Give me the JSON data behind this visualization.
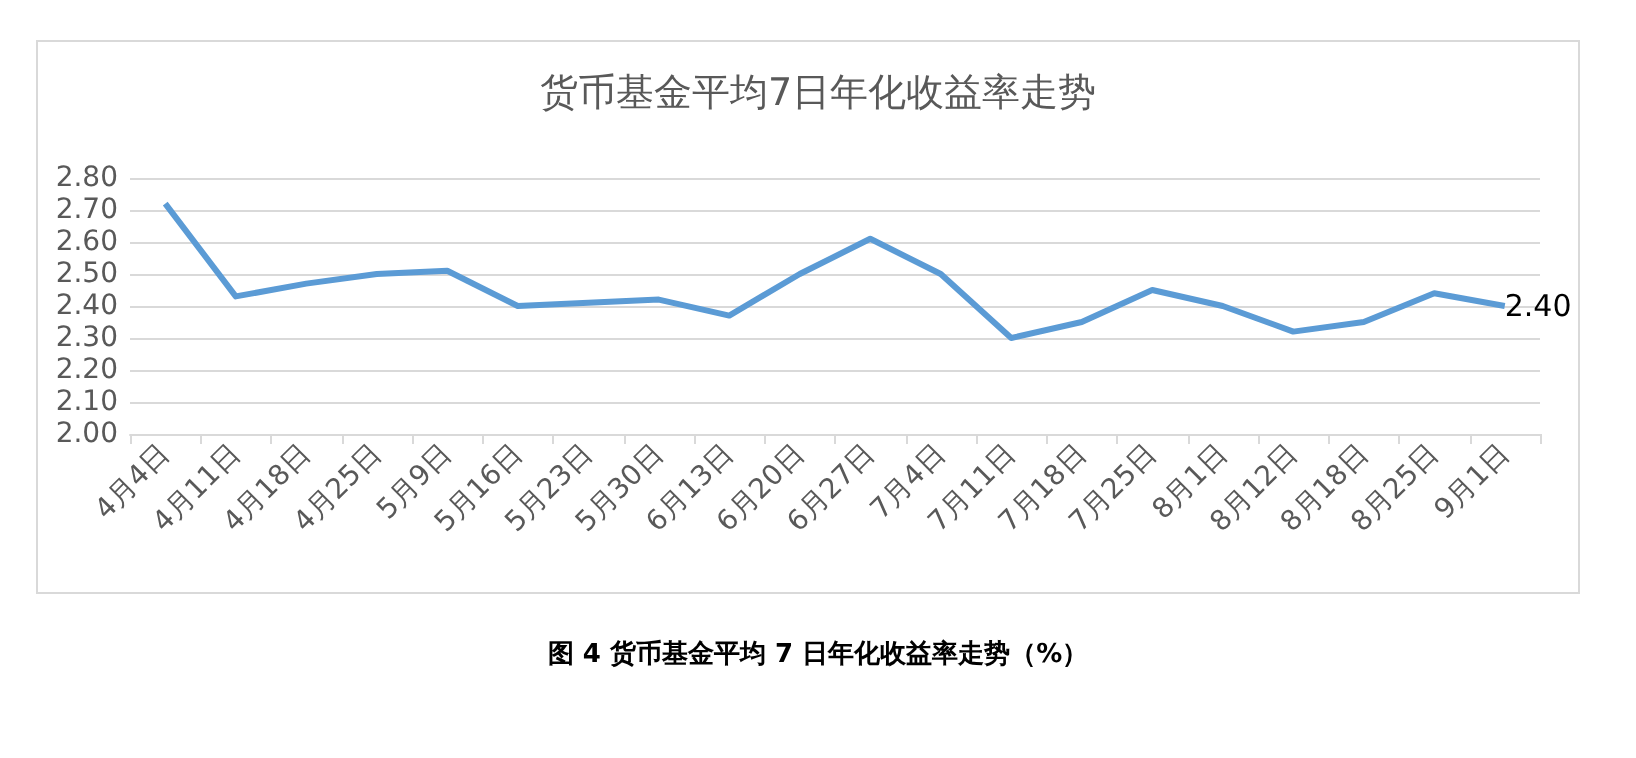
{
  "chart_data": {
    "type": "line",
    "title": "货币基金平均7日年化收益率走势",
    "categories": [
      "4月4日",
      "4月11日",
      "4月18日",
      "4月25日",
      "5月9日",
      "5月16日",
      "5月23日",
      "5月30日",
      "6月13日",
      "6月20日",
      "6月27日",
      "7月4日",
      "7月11日",
      "7月18日",
      "7月25日",
      "8月1日",
      "8月12日",
      "8月18日",
      "8月25日",
      "9月1日"
    ],
    "series": [
      {
        "color": "#5b9bd5",
        "values": [
          2.72,
          2.43,
          2.47,
          2.5,
          2.51,
          2.4,
          2.41,
          2.42,
          2.37,
          2.5,
          2.61,
          2.5,
          2.3,
          2.35,
          2.45,
          2.4,
          2.32,
          2.35,
          2.44,
          2.4
        ],
        "value_labels": [
          null,
          null,
          null,
          null,
          null,
          null,
          null,
          null,
          null,
          null,
          null,
          null,
          null,
          null,
          null,
          null,
          null,
          null,
          null,
          "2.40"
        ]
      }
    ],
    "ylim": [
      2.0,
      2.8
    ],
    "yticks": [
      {
        "value": 2.0,
        "label": "2.00"
      },
      {
        "value": 2.1,
        "label": "2.10"
      },
      {
        "value": 2.2,
        "label": "2.20"
      },
      {
        "value": 2.3,
        "label": "2.30"
      },
      {
        "value": 2.4,
        "label": "2.40"
      },
      {
        "value": 2.5,
        "label": "2.50"
      },
      {
        "value": 2.6,
        "label": "2.60"
      },
      {
        "value": 2.7,
        "label": "2.70"
      },
      {
        "value": 2.8,
        "label": "2.80"
      }
    ],
    "grid": "y",
    "marker": "none",
    "line_style": "solid",
    "annotations": [
      "图 4 货币基金平均 7 日年化收益率走势（%）"
    ]
  }
}
